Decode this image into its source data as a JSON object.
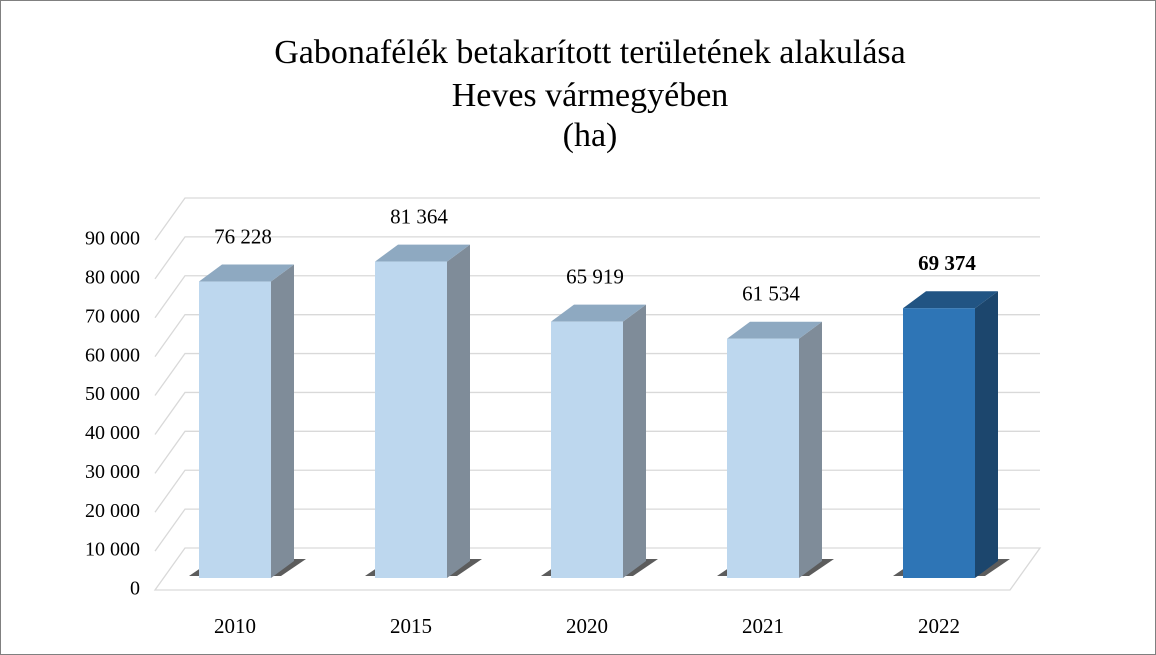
{
  "chart_data": {
    "type": "bar",
    "title": [
      "Gabonafélék betakarított területének alakulása",
      "Heves vármegyében",
      "(ha)"
    ],
    "categories": [
      "2010",
      "2015",
      "2020",
      "2021",
      "2022"
    ],
    "values": [
      76228,
      81364,
      65919,
      61534,
      69374
    ],
    "value_labels": [
      "76 228",
      "81 364",
      "65 919",
      "61 534",
      "69 374"
    ],
    "colors": [
      "#bdd7ee",
      "#bdd7ee",
      "#bdd7ee",
      "#bdd7ee",
      "#2e75b6"
    ],
    "bold_labels": [
      false,
      false,
      false,
      false,
      true
    ],
    "ylim": [
      0,
      90000
    ],
    "yticks": [
      0,
      {
        "value": 10000,
        "label": "10 000"
      },
      {
        "value": 20000,
        "label": "20 000"
      },
      {
        "value": 30000,
        "label": "30 000"
      },
      {
        "value": 40000,
        "label": "40 000"
      },
      {
        "value": 50000,
        "label": "50 000"
      },
      {
        "value": 60000,
        "label": "60 000"
      },
      {
        "value": 70000,
        "label": "70 000"
      },
      {
        "value": 80000,
        "label": "80 000"
      },
      {
        "value": 90000,
        "label": "90 000"
      }
    ],
    "grid": true
  }
}
